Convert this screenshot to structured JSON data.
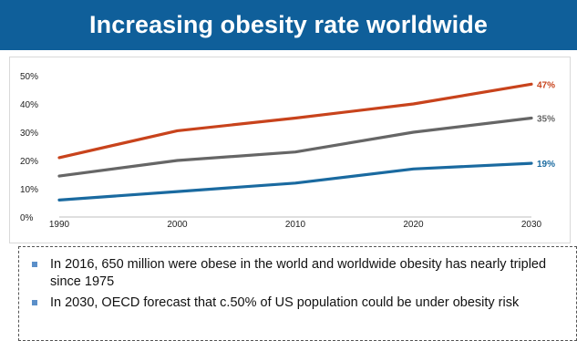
{
  "header": {
    "title": "Increasing obesity rate worldwide"
  },
  "chart_data": {
    "type": "line",
    "x": [
      1990,
      2000,
      2010,
      2020,
      2030
    ],
    "x_tick_labels": [
      "1990",
      "2000",
      "2010",
      "2020",
      "2030"
    ],
    "y_tick_labels": [
      "0%",
      "10%",
      "20%",
      "30%",
      "40%",
      "50%"
    ],
    "ylim": [
      0,
      50
    ],
    "grid": false,
    "series": [
      {
        "values": [
          21,
          30.5,
          35,
          40,
          47
        ],
        "color": "#c8431c",
        "end_label": "47%"
      },
      {
        "values": [
          14.5,
          20,
          23,
          30,
          35
        ],
        "color": "#666666",
        "end_label": "35%"
      },
      {
        "values": [
          6,
          9,
          12,
          17,
          19
        ],
        "color": "#1a6aa0",
        "end_label": "19%"
      }
    ]
  },
  "notes": {
    "items": [
      "In 2016, 650 million were obese in the world and worldwide obesity has nearly tripled since 1975",
      "In 2030, OECD forecast that c.50% of US population could be under obesity risk"
    ]
  },
  "colors": {
    "title_bar": "#0f5f9a",
    "bullet": "#5b8fc9"
  }
}
